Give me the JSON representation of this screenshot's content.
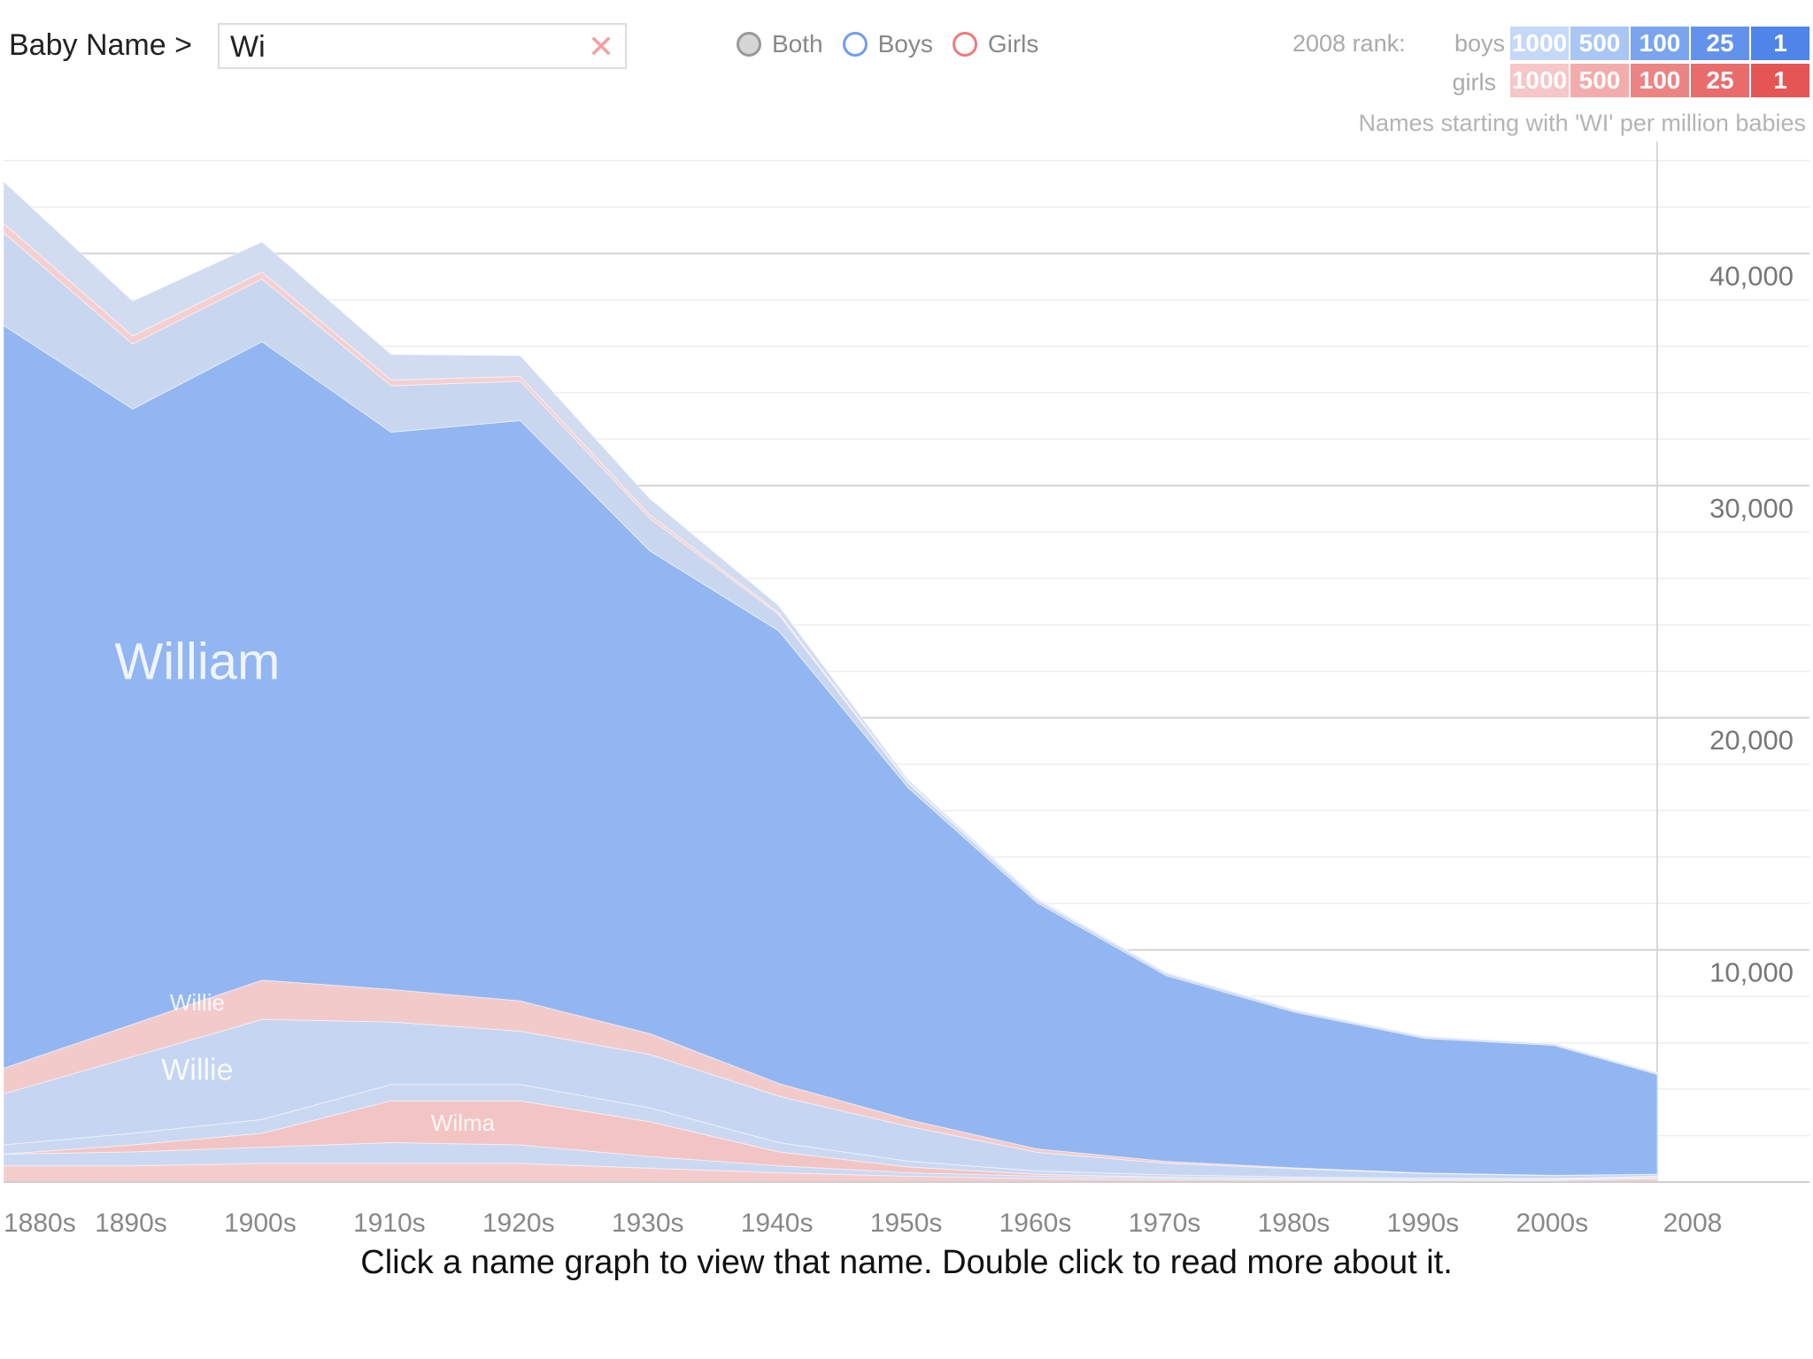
{
  "search": {
    "label": "Baby Name >",
    "value": "Wi",
    "clear_glyph": "✕"
  },
  "gender_filter": {
    "options": [
      {
        "label": "Both",
        "color": "#d6d6d6"
      },
      {
        "label": "Boys",
        "color": "#6f9cf0"
      },
      {
        "label": "Girls",
        "color": "#ef7a7a"
      }
    ],
    "selected": "Both"
  },
  "rank_legend": {
    "title": "2008 rank:",
    "boys_label": "boys",
    "girls_label": "girls",
    "cells": [
      "1000",
      "500",
      "100",
      "25",
      "1"
    ],
    "boys_colors": [
      "#c5d8f7",
      "#a9c6f5",
      "#7aa5ee",
      "#6392ea",
      "#4f84e8"
    ],
    "girls_colors": [
      "#f7c6c6",
      "#f3acac",
      "#ec8484",
      "#e96c6c",
      "#e65555"
    ]
  },
  "hint": "Click a name graph to view that name. Double click to read more about it.",
  "chart_data": {
    "type": "area",
    "subtitle": "Names starting with 'WI' per million babies",
    "x": [
      "1880s",
      "1890s",
      "1900s",
      "1910s",
      "1920s",
      "1930s",
      "1940s",
      "1950s",
      "1960s",
      "1970s",
      "1980s",
      "1990s",
      "2000s",
      "2008"
    ],
    "x_numeric": [
      1880,
      1890,
      1900,
      1910,
      1920,
      1930,
      1940,
      1950,
      1960,
      1970,
      1980,
      1990,
      2000,
      2008
    ],
    "ylim": [
      0,
      45000
    ],
    "yticks": [
      10000,
      20000,
      30000,
      40000
    ],
    "ytick_labels": [
      "10,000",
      "20,000",
      "30,000",
      "40,000"
    ],
    "grid": true,
    "stacked": true,
    "series": [
      {
        "name": "",
        "gender": "girl",
        "color": "#f5cccc",
        "values": [
          700,
          700,
          800,
          800,
          800,
          600,
          400,
          250,
          150,
          100,
          80,
          60,
          60,
          150
        ]
      },
      {
        "name": "",
        "gender": "boy",
        "color": "#cbd8f2",
        "values": [
          500,
          600,
          700,
          900,
          800,
          500,
          300,
          150,
          100,
          80,
          60,
          50,
          50,
          50
        ]
      },
      {
        "name": "Wilma",
        "gender": "girl",
        "color": "#f3c4c4",
        "values": [
          0,
          300,
          600,
          1800,
          1900,
          1500,
          600,
          250,
          80,
          30,
          20,
          10,
          10,
          10
        ]
      },
      {
        "name": "",
        "gender": "boy",
        "color": "#cbd8f2",
        "values": [
          400,
          500,
          600,
          700,
          700,
          600,
          400,
          250,
          150,
          100,
          60,
          50,
          40,
          40
        ]
      },
      {
        "name": "Willie",
        "gender": "boy",
        "color": "#c6d6f2",
        "values": [
          2200,
          3300,
          4300,
          2700,
          2300,
          2300,
          2000,
          1500,
          800,
          500,
          350,
          200,
          120,
          80
        ]
      },
      {
        "name": "Willie",
        "gender": "girl",
        "color": "#f3caca",
        "values": [
          1100,
          1400,
          1700,
          1400,
          1300,
          900,
          550,
          300,
          150,
          80,
          40,
          20,
          10,
          10
        ]
      },
      {
        "name": "William",
        "gender": "boy",
        "color": "#92b6f2",
        "values": [
          32000,
          26500,
          27500,
          24000,
          25000,
          20800,
          19500,
          14300,
          10600,
          8000,
          6700,
          5800,
          5600,
          4300
        ]
      },
      {
        "name": "",
        "gender": "boy",
        "color": "#c9d6ef",
        "values": [
          4000,
          2800,
          2700,
          2000,
          1700,
          1400,
          700,
          200,
          120,
          100,
          80,
          70,
          60,
          60
        ]
      },
      {
        "name": "",
        "gender": "girl",
        "color": "#f5cfcf",
        "values": [
          400,
          350,
          300,
          250,
          200,
          150,
          80,
          40,
          20,
          10,
          10,
          10,
          10,
          10
        ]
      },
      {
        "name": "",
        "gender": "boy",
        "color": "#d1dcf1",
        "values": [
          1800,
          1500,
          1300,
          1100,
          900,
          700,
          300,
          100,
          60,
          40,
          30,
          20,
          20,
          20
        ]
      }
    ]
  }
}
